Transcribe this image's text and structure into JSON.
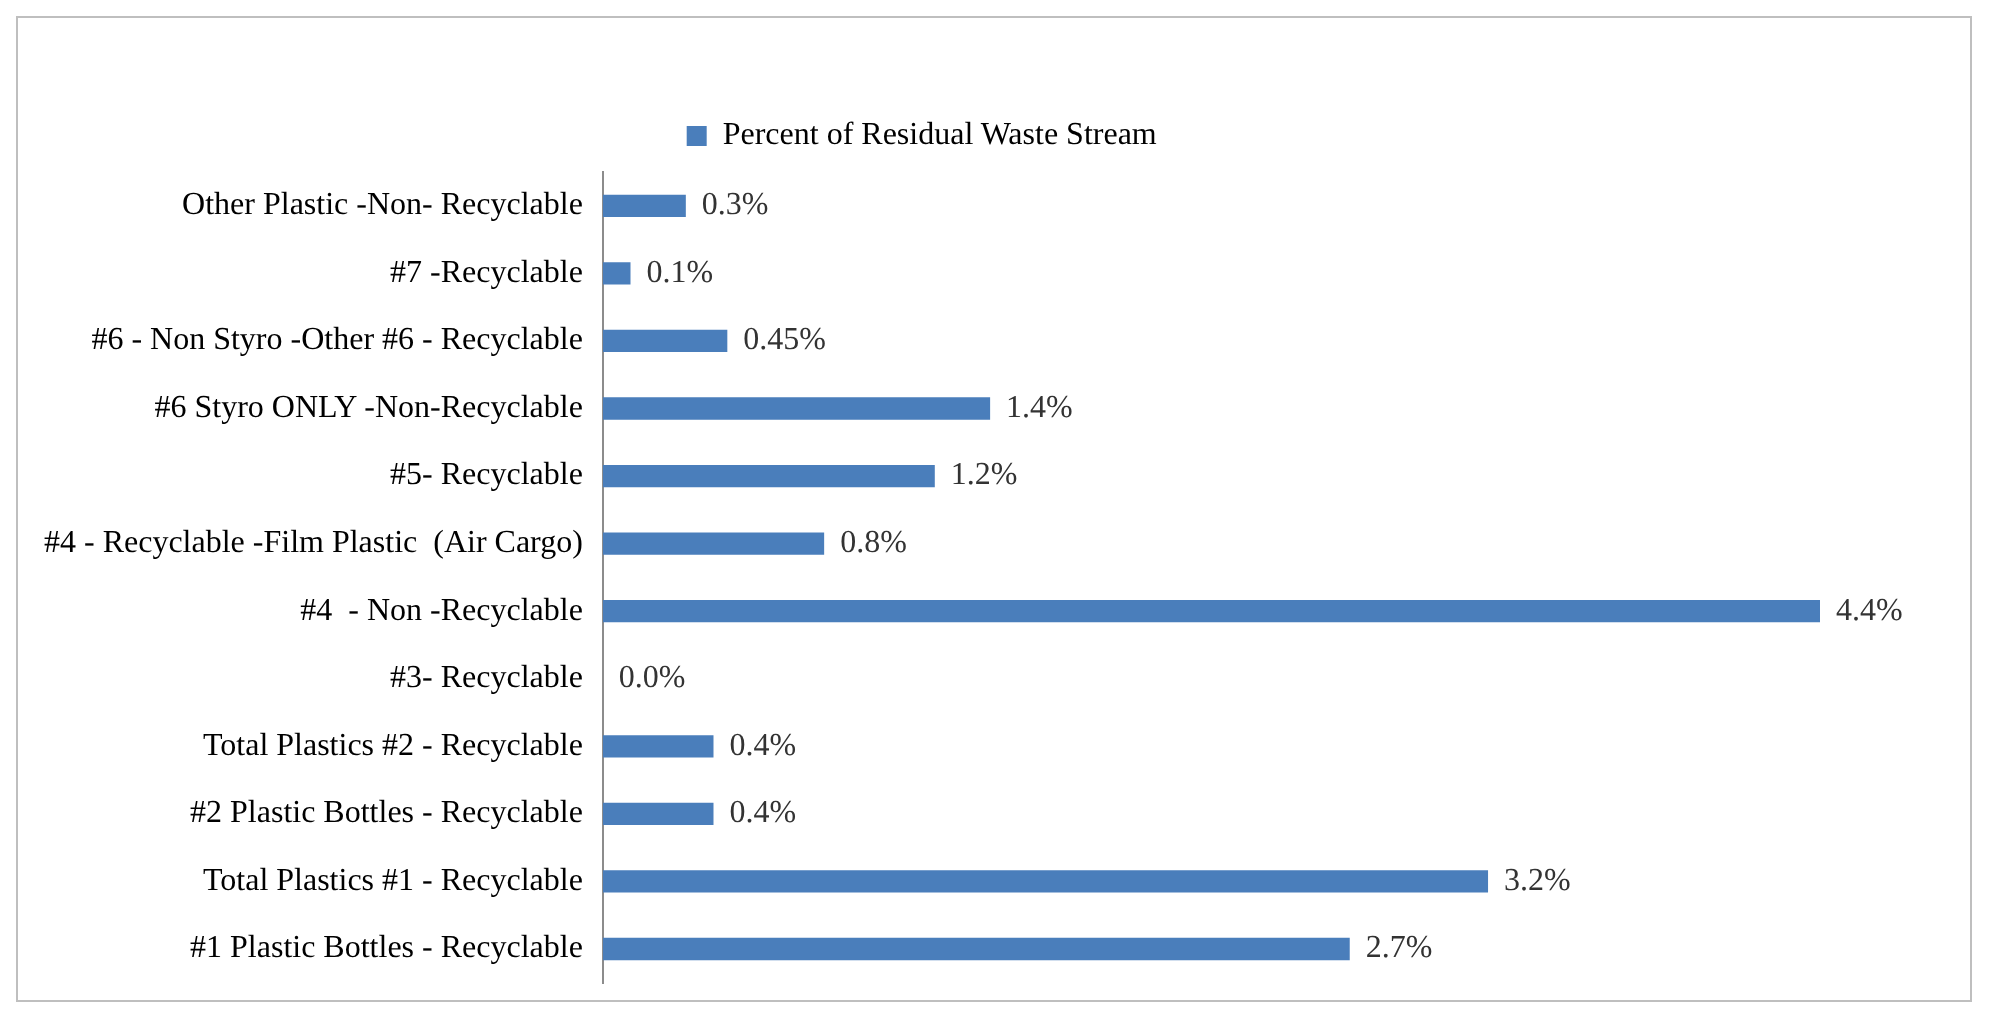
{
  "chart_data": {
    "type": "bar",
    "orientation": "horizontal",
    "legend": "top",
    "grid": false,
    "categories": [
      "Other Plastic -Non- Recyclable",
      "#7 -Recyclable",
      "#6 - Non Styro -Other #6 - Recyclable",
      "#6 Styro ONLY -Non-Recyclable",
      "#5- Recyclable",
      "#4 - Recyclable -Film Plastic  (Air Cargo)",
      "#4  - Non -Recyclable",
      "#3- Recyclable",
      "Total Plastics #2 - Recyclable",
      "#2 Plastic Bottles - Recyclable",
      "Total Plastics #1 - Recyclable",
      "#1 Plastic Bottles - Recyclable"
    ],
    "series": [
      {
        "name": "Percent of Residual Waste Stream",
        "color": "#4a7ebb",
        "values": [
          0.3,
          0.1,
          0.45,
          1.4,
          1.2,
          0.8,
          4.4,
          0.0,
          0.4,
          0.4,
          3.2,
          2.7
        ],
        "value_labels": [
          "0.3%",
          "0.1%",
          "0.45%",
          "1.4%",
          "1.2%",
          "0.8%",
          "4.4%",
          "0.0%",
          "0.4%",
          "0.4%",
          "3.2%",
          "2.7%"
        ]
      }
    ]
  }
}
